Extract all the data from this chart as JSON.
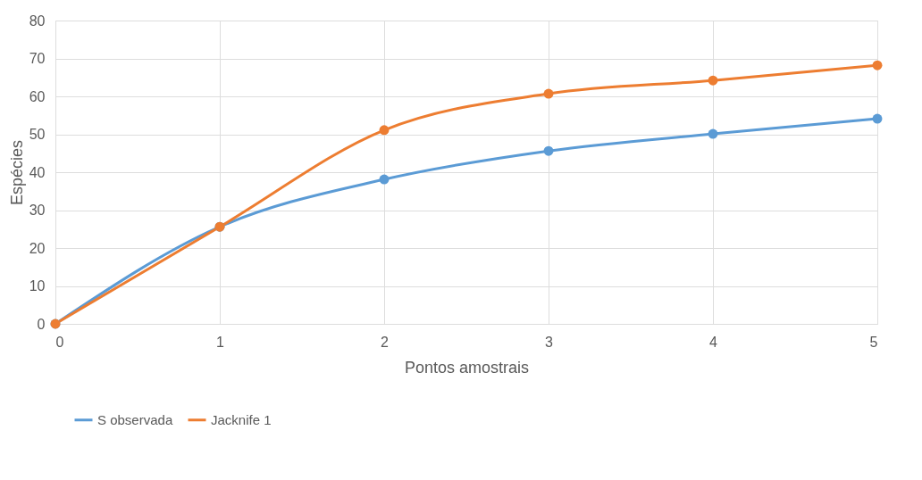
{
  "chart_data": {
    "type": "line",
    "xlabel": "Pontos amostrais",
    "ylabel": "Espécies",
    "x": [
      0,
      1,
      2,
      3,
      4,
      5
    ],
    "series": [
      {
        "name": "S observada",
        "color": "#5b9bd5",
        "values": [
          0,
          25.6,
          38.1,
          45.6,
          50.1,
          54.1
        ]
      },
      {
        "name": "Jacknife 1",
        "color": "#ed7d31",
        "values": [
          0,
          25.6,
          51.1,
          60.7,
          64.2,
          68.2
        ]
      }
    ],
    "xlim": [
      0,
      5
    ],
    "xticks": [
      0,
      1,
      2,
      3,
      4,
      5
    ],
    "ylim": [
      0,
      80
    ],
    "yticks": [
      0,
      10,
      20,
      30,
      40,
      50,
      60,
      70,
      80
    ],
    "grid": true,
    "legend": "bottom",
    "marker": "circle",
    "line_style": "solid"
  }
}
